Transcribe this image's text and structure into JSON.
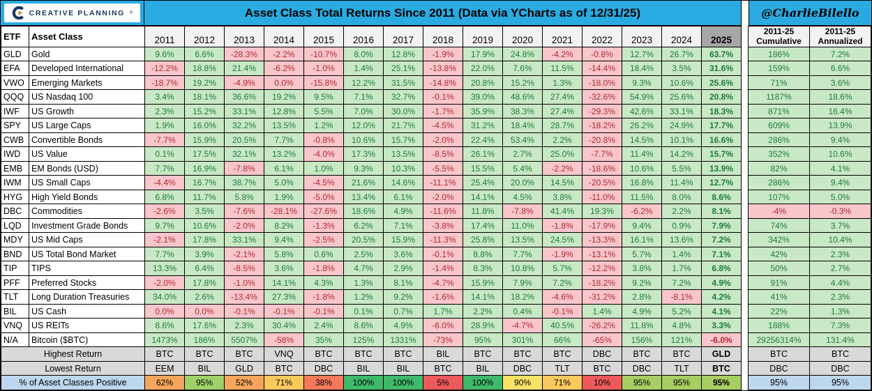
{
  "brand": {
    "logo_text": "CREATIVE PLANNING",
    "registered_mark": "®"
  },
  "title": "Asset Class Total Returns Since 2011 (Data via YCharts as of 12/31/25)",
  "handle": "@CharlieBilello",
  "colors": {
    "accent_cyan": "#29ABE2",
    "positive_bg": "#C9E8C5",
    "positive_text": "#1E7C3C",
    "negative_bg": "#F8C6CB",
    "negative_text": "#B02833",
    "year_header_gray": "#F2F2F2",
    "header_2025_gray": "#A6A6A6",
    "summary_gray": "#D9D9D9",
    "summary_blue": "#BDD7EE",
    "logo_navy": "#1B365D",
    "logo_gold": "#C9A24B"
  },
  "chart_data": {
    "type": "table",
    "title": "Asset Class Total Returns Since 2011 (Data via YCharts as of 12/31/25)",
    "columns": {
      "etf": "ETF",
      "asset_class": "Asset Class",
      "years": [
        "2011",
        "2012",
        "2013",
        "2014",
        "2015",
        "2016",
        "2017",
        "2018",
        "2019",
        "2020",
        "2021",
        "2022",
        "2023",
        "2024",
        "2025"
      ],
      "cumulative": [
        "2011-25",
        "Cumulative"
      ],
      "annualized": [
        "2011-25",
        "Annualized"
      ]
    },
    "rows": [
      {
        "etf": "GLD",
        "name": "Gold",
        "values": [
          "9.6%",
          "6.6%",
          "-28.3%",
          "-2.2%",
          "-10.7%",
          "8.0%",
          "12.8%",
          "-1.9%",
          "17.9%",
          "24.8%",
          "-4.2%",
          "-0.8%",
          "12.7%",
          "26.7%",
          "63.7%"
        ],
        "cumulative": "186%",
        "annualized": "7.2%"
      },
      {
        "etf": "EFA",
        "name": "Developed International",
        "values": [
          "-12.2%",
          "18.8%",
          "21.4%",
          "-6.2%",
          "-1.0%",
          "1.4%",
          "25.1%",
          "-13.8%",
          "22.0%",
          "7.6%",
          "11.5%",
          "-14.4%",
          "18.4%",
          "3.5%",
          "31.6%"
        ],
        "cumulative": "159%",
        "annualized": "6.6%"
      },
      {
        "etf": "VWO",
        "name": "Emerging Markets",
        "values": [
          "-18.7%",
          "19.2%",
          "-4.9%",
          "0.0%",
          "-15.8%",
          "12.2%",
          "31.5%",
          "-14.8%",
          "20.8%",
          "15.2%",
          "1.3%",
          "-18.0%",
          "9.3%",
          "10.6%",
          "25.6%"
        ],
        "cumulative": "71%",
        "annualized": "3.6%"
      },
      {
        "etf": "QQQ",
        "name": "US Nasdaq 100",
        "values": [
          "3.4%",
          "18.1%",
          "36.6%",
          "19.2%",
          "9.5%",
          "7.1%",
          "32.7%",
          "-0.1%",
          "39.0%",
          "48.6%",
          "27.4%",
          "-32.6%",
          "54.9%",
          "25.6%",
          "20.8%"
        ],
        "cumulative": "1187%",
        "annualized": "18.6%"
      },
      {
        "etf": "IWF",
        "name": "US Growth",
        "values": [
          "2.3%",
          "15.2%",
          "33.1%",
          "12.8%",
          "5.5%",
          "7.0%",
          "30.0%",
          "-1.7%",
          "35.9%",
          "38.3%",
          "27.4%",
          "-29.3%",
          "42.6%",
          "33.1%",
          "18.3%"
        ],
        "cumulative": "871%",
        "annualized": "16.4%"
      },
      {
        "etf": "SPY",
        "name": "US Large Caps",
        "values": [
          "1.9%",
          "16.0%",
          "32.2%",
          "13.5%",
          "1.2%",
          "12.0%",
          "21.7%",
          "-4.5%",
          "31.2%",
          "18.4%",
          "28.7%",
          "-18.2%",
          "26.2%",
          "24.9%",
          "17.7%"
        ],
        "cumulative": "609%",
        "annualized": "13.9%"
      },
      {
        "etf": "CWB",
        "name": "Convertible Bonds",
        "values": [
          "-7.7%",
          "15.9%",
          "20.5%",
          "7.7%",
          "-0.8%",
          "10.6%",
          "15.7%",
          "-2.0%",
          "22.4%",
          "53.4%",
          "2.2%",
          "-20.8%",
          "14.5%",
          "10.1%",
          "16.6%"
        ],
        "cumulative": "286%",
        "annualized": "9.4%"
      },
      {
        "etf": "IWD",
        "name": "US Value",
        "values": [
          "0.1%",
          "17.5%",
          "32.1%",
          "13.2%",
          "-4.0%",
          "17.3%",
          "13.5%",
          "-8.5%",
          "26.1%",
          "2.7%",
          "25.0%",
          "-7.7%",
          "11.4%",
          "14.2%",
          "15.7%"
        ],
        "cumulative": "352%",
        "annualized": "10.6%"
      },
      {
        "etf": "EMB",
        "name": "EM Bonds (USD)",
        "values": [
          "7.7%",
          "16.9%",
          "-7.8%",
          "6.1%",
          "1.0%",
          "9.3%",
          "10.3%",
          "-5.5%",
          "15.5%",
          "5.4%",
          "-2.2%",
          "-18.6%",
          "10.6%",
          "5.5%",
          "13.9%"
        ],
        "cumulative": "82%",
        "annualized": "4.1%"
      },
      {
        "etf": "IWM",
        "name": "US Small Caps",
        "values": [
          "-4.4%",
          "16.7%",
          "38.7%",
          "5.0%",
          "-4.5%",
          "21.6%",
          "14.6%",
          "-11.1%",
          "25.4%",
          "20.0%",
          "14.5%",
          "-20.5%",
          "16.8%",
          "11.4%",
          "12.7%"
        ],
        "cumulative": "286%",
        "annualized": "9.4%"
      },
      {
        "etf": "HYG",
        "name": "High Yield Bonds",
        "values": [
          "6.8%",
          "11.7%",
          "5.8%",
          "1.9%",
          "-5.0%",
          "13.4%",
          "6.1%",
          "-2.0%",
          "14.1%",
          "4.5%",
          "3.8%",
          "-11.0%",
          "11.5%",
          "8.0%",
          "8.6%"
        ],
        "cumulative": "107%",
        "annualized": "5.0%"
      },
      {
        "etf": "DBC",
        "name": "Commodities",
        "values": [
          "-2.6%",
          "3.5%",
          "-7.6%",
          "-28.1%",
          "-27.6%",
          "18.6%",
          "4.9%",
          "-11.6%",
          "11.8%",
          "-7.8%",
          "41.4%",
          "19.3%",
          "-6.2%",
          "2.2%",
          "8.1%"
        ],
        "cumulative": "-4%",
        "annualized": "-0.3%"
      },
      {
        "etf": "LQD",
        "name": "Investment Grade Bonds",
        "values": [
          "9.7%",
          "10.6%",
          "-2.0%",
          "8.2%",
          "-1.3%",
          "6.2%",
          "7.1%",
          "-3.8%",
          "17.4%",
          "11.0%",
          "-1.8%",
          "-17.9%",
          "9.4%",
          "0.9%",
          "7.9%"
        ],
        "cumulative": "74%",
        "annualized": "3.7%"
      },
      {
        "etf": "MDY",
        "name": "US Mid Caps",
        "values": [
          "-2.1%",
          "17.8%",
          "33.1%",
          "9.4%",
          "-2.5%",
          "20.5%",
          "15.9%",
          "-11.3%",
          "25.8%",
          "13.5%",
          "24.5%",
          "-13.3%",
          "16.1%",
          "13.6%",
          "7.2%"
        ],
        "cumulative": "342%",
        "annualized": "10.4%"
      },
      {
        "etf": "BND",
        "name": "US Total Bond Market",
        "values": [
          "7.7%",
          "3.9%",
          "-2.1%",
          "5.8%",
          "0.6%",
          "2.5%",
          "3.6%",
          "-0.1%",
          "8.8%",
          "7.7%",
          "-1.9%",
          "-13.1%",
          "5.7%",
          "1.4%",
          "7.1%"
        ],
        "cumulative": "42%",
        "annualized": "2.3%"
      },
      {
        "etf": "TIP",
        "name": "TIPS",
        "values": [
          "13.3%",
          "6.4%",
          "-8.5%",
          "3.6%",
          "-1.8%",
          "4.7%",
          "2.9%",
          "-1.4%",
          "8.3%",
          "10.8%",
          "5.7%",
          "-12.2%",
          "3.8%",
          "1.7%",
          "6.8%"
        ],
        "cumulative": "50%",
        "annualized": "2.7%"
      },
      {
        "etf": "PFF",
        "name": "Preferred Stocks",
        "values": [
          "-2.0%",
          "17.8%",
          "-1.0%",
          "14.1%",
          "4.3%",
          "1.3%",
          "8.1%",
          "-4.7%",
          "15.9%",
          "7.9%",
          "7.2%",
          "-18.2%",
          "9.2%",
          "7.2%",
          "4.9%"
        ],
        "cumulative": "91%",
        "annualized": "4.4%"
      },
      {
        "etf": "TLT",
        "name": "Long Duration Treasuries",
        "values": [
          "34.0%",
          "2.6%",
          "-13.4%",
          "27.3%",
          "-1.8%",
          "1.2%",
          "9.2%",
          "-1.6%",
          "14.1%",
          "18.2%",
          "-4.6%",
          "-31.2%",
          "2.8%",
          "-8.1%",
          "4.2%"
        ],
        "cumulative": "41%",
        "annualized": "2.3%"
      },
      {
        "etf": "BIL",
        "name": "US Cash",
        "values": [
          "0.0%",
          "0.0%",
          "-0.1%",
          "-0.1%",
          "-0.1%",
          "0.1%",
          "0.7%",
          "1.7%",
          "2.2%",
          "0.4%",
          "-0.1%",
          "1.4%",
          "4.9%",
          "5.2%",
          "4.1%"
        ],
        "cumulative": "22%",
        "annualized": "1.3%"
      },
      {
        "etf": "VNQ",
        "name": "US REITs",
        "values": [
          "8.6%",
          "17.6%",
          "2.3%",
          "30.4%",
          "2.4%",
          "8.6%",
          "4.9%",
          "-6.0%",
          "28.9%",
          "-4.7%",
          "40.5%",
          "-26.2%",
          "11.8%",
          "4.8%",
          "3.3%"
        ],
        "cumulative": "188%",
        "annualized": "7.3%"
      },
      {
        "etf": "N/A",
        "name": "Bitcoin ($BTC)",
        "values": [
          "1473%",
          "186%",
          "5507%",
          "-58%",
          "35%",
          "125%",
          "1331%",
          "-73%",
          "95%",
          "301%",
          "66%",
          "-65%",
          "156%",
          "121%",
          "-6.0%"
        ],
        "cumulative": "29256314%",
        "annualized": "131.4%"
      }
    ],
    "summary": {
      "highest": {
        "label": "Highest Return",
        "values": [
          "BTC",
          "BTC",
          "BTC",
          "VNQ",
          "BTC",
          "BTC",
          "BTC",
          "BIL",
          "BTC",
          "BTC",
          "BTC",
          "DBC",
          "BTC",
          "BTC",
          "GLD",
          "BTC",
          "BTC"
        ]
      },
      "lowest": {
        "label": "Lowest Return",
        "values": [
          "EEM",
          "BIL",
          "GLD",
          "BTC",
          "DBC",
          "BIL",
          "BIL",
          "BTC",
          "BIL",
          "DBC",
          "TLT",
          "BTC",
          "DBC",
          "TLT",
          "BTC",
          "DBC",
          "DBC"
        ]
      },
      "pct_positive": {
        "label": "% of Asset Classes Positive",
        "values": [
          "62%",
          "95%",
          "52%",
          "71%",
          "38%",
          "100%",
          "100%",
          "5%",
          "100%",
          "90%",
          "71%",
          "10%",
          "95%",
          "95%",
          "95%",
          "95%",
          "95%"
        ],
        "colors": [
          "#F6A55C",
          "#9FD169",
          "#F6A55C",
          "#FAC95E",
          "#F5795C",
          "#3FB96A",
          "#3FB96A",
          "#ED5A5B",
          "#3FB96A",
          "#F8E366",
          "#FAC95E",
          "#ED5A5B",
          "#A6CE63",
          "#A6CE63",
          "#A6CE63",
          "#BDD7EE",
          "#BDD7EE"
        ]
      }
    }
  }
}
